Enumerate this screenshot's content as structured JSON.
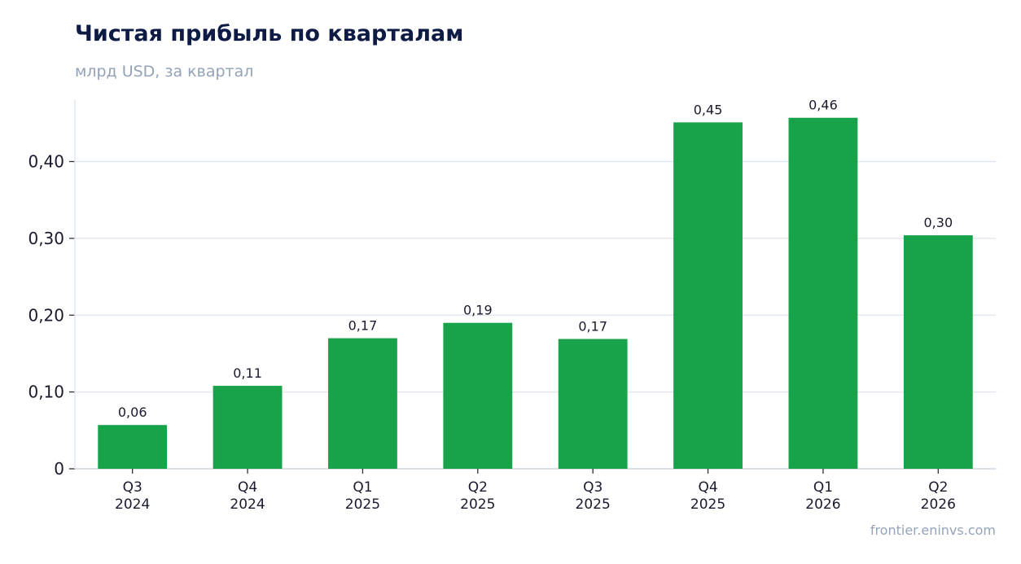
{
  "header": {
    "title": "Чистая прибыль по кварталам",
    "subtitle": "млрд USD, за квартал"
  },
  "footer": {
    "source": "frontier.eninvs.com"
  },
  "colors": {
    "bar": "#18a34a",
    "grid": "#e2e8f0",
    "axis": "#cbd5e1"
  },
  "chart_data": {
    "type": "bar",
    "categories": [
      [
        "Q3",
        "2024"
      ],
      [
        "Q4",
        "2024"
      ],
      [
        "Q1",
        "2025"
      ],
      [
        "Q2",
        "2025"
      ],
      [
        "Q3",
        "2025"
      ],
      [
        "Q4",
        "2025"
      ],
      [
        "Q1",
        "2026"
      ],
      [
        "Q2",
        "2026"
      ]
    ],
    "values": [
      0.057,
      0.108,
      0.17,
      0.19,
      0.169,
      0.451,
      0.457,
      0.304
    ],
    "data_labels": [
      "0,06",
      "0,11",
      "0,17",
      "0,19",
      "0,17",
      "0,45",
      "0,46",
      "0,30"
    ],
    "yticks": [
      0,
      0.1,
      0.2,
      0.3,
      0.4
    ],
    "ytick_labels": [
      "0",
      "0,10",
      "0,20",
      "0,30",
      "0,40"
    ],
    "ylim": [
      0,
      0.48
    ],
    "grid": true,
    "legend": "none"
  }
}
